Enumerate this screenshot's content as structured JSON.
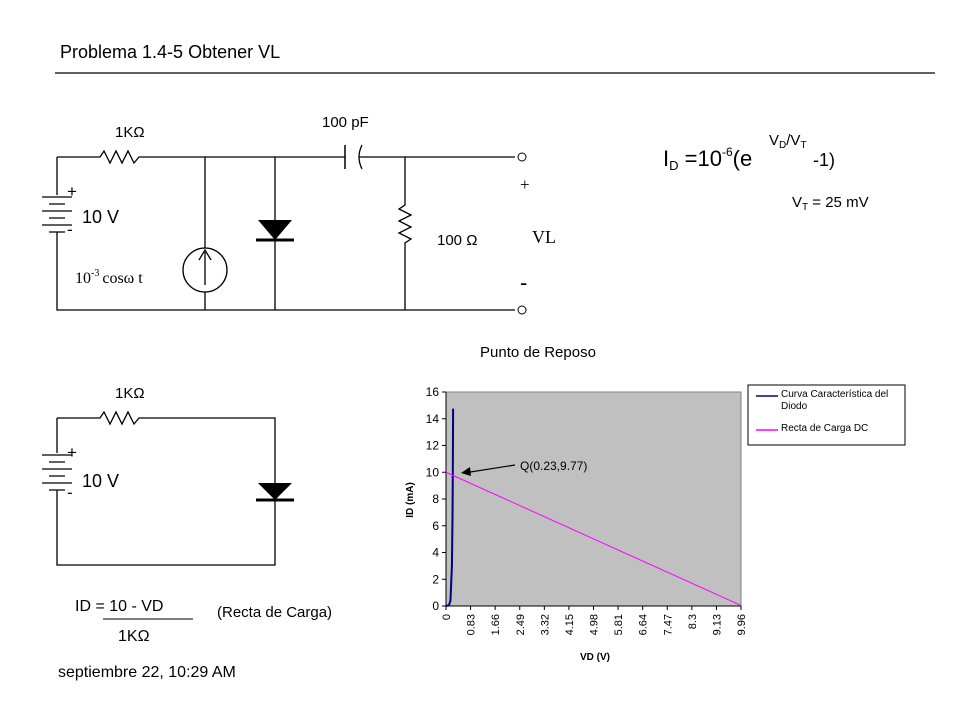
{
  "header": {
    "title": "Problema 1.4-5  Obtener VL"
  },
  "circuit1": {
    "resistor": "1KΩ",
    "capacitor": "100 pF",
    "load": "100 Ω",
    "plus": "+",
    "source": "10 V",
    "minus": "-",
    "ac": {
      "coef": "10",
      "exp": "-3",
      "rest": "cosω t"
    },
    "out_plus": "+",
    "out_label": "VL",
    "out_minus": "-"
  },
  "equation": {
    "lhs": "I",
    "lhs_sub": "D",
    "base": " =10",
    "exp": "-6",
    "open": "(e",
    "pow_v": "V",
    "pow_vsub": "D",
    "pow_slash": "/V",
    "pow_tsub": "T",
    "tail": "-1)",
    "vt": {
      "v": "V",
      "sub": "T",
      "rest": " = 25 mV"
    }
  },
  "circuit2": {
    "resistor": "1KΩ",
    "plus": "+",
    "source": "10 V",
    "minus": "-"
  },
  "load_line": {
    "numerator": "ID = 10  - VD",
    "denominator": "1KΩ",
    "caption": "(Recta de Carga)"
  },
  "footer": {
    "date": "septiembre 22, 10:29 AM"
  },
  "chart_data": {
    "type": "line",
    "title": "Punto de Reposo",
    "x_label": "VD (V)",
    "y_label": "ID (mA)",
    "xlim": [
      0,
      9.96
    ],
    "xticks": [
      0,
      0.83,
      1.66,
      2.49,
      3.32,
      4.15,
      4.98,
      5.81,
      6.64,
      7.47,
      8.3,
      9.13,
      9.96
    ],
    "ylim": [
      0,
      16
    ],
    "yticks": [
      0,
      2,
      4,
      6,
      8,
      10,
      12,
      14,
      16
    ],
    "plot_background": "#c0c0c0",
    "annotation": "Q(0.23,9.77)",
    "series": [
      {
        "name": "Curva Característica del Diodo",
        "color": "#000080",
        "x": [
          0,
          0.1,
          0.15,
          0.2,
          0.22,
          0.23,
          0.24
        ],
        "values": [
          0,
          0.054,
          0.4,
          2.98,
          6.7,
          9.9,
          14.76
        ]
      },
      {
        "name": "Recta de Carga DC",
        "color": "#ff00ff",
        "x": [
          0,
          9.96
        ],
        "values": [
          10,
          0.04
        ]
      }
    ]
  }
}
